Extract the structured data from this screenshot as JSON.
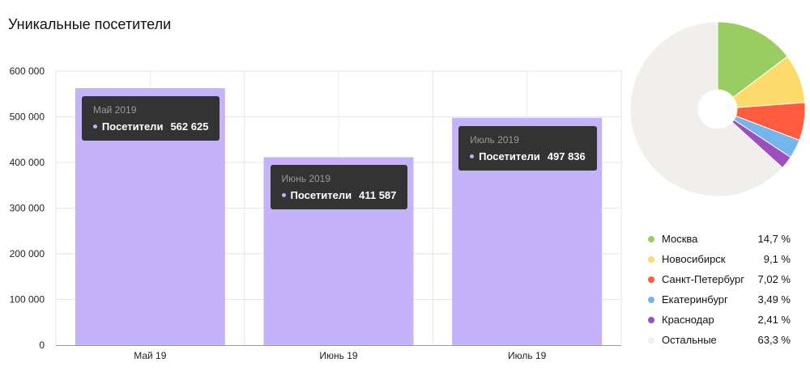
{
  "chart_data": [
    {
      "type": "bar",
      "title": "Уникальные посетители",
      "categories": [
        "Май 19",
        "Июнь 19",
        "Июль 19"
      ],
      "series": [
        {
          "name": "Посетители",
          "values": [
            562625,
            411587,
            497836
          ]
        }
      ],
      "ylim": [
        0,
        600000
      ],
      "yticks": [
        "0",
        "100 000",
        "200 000",
        "300 000",
        "400 000",
        "500 000",
        "600 000"
      ],
      "grid": true,
      "bar_color": "#c4b3fa",
      "tooltips": [
        {
          "date": "Май 2019",
          "label": "Посетители",
          "value": "562 625"
        },
        {
          "date": "Июнь 2019",
          "label": "Посетители",
          "value": "411 587"
        },
        {
          "date": "Июль 2019",
          "label": "Посетители",
          "value": "497 836"
        }
      ]
    },
    {
      "type": "pie",
      "labels": [
        "Москва",
        "Новосибирск",
        "Санкт-Петербург",
        "Екатеринбург",
        "Краснодар",
        "Остальные"
      ],
      "values": [
        14.7,
        9.1,
        7.02,
        3.49,
        2.41,
        63.3
      ],
      "value_labels": [
        "14,7 %",
        "9,1 %",
        "7,02 %",
        "3,49 %",
        "2,41 %",
        "63,3 %"
      ],
      "colors": [
        "#98cd62",
        "#fddb6a",
        "#ff5b3e",
        "#72b6ec",
        "#9d4fc0",
        "#f0efec"
      ],
      "legend_position": "bottom"
    }
  ]
}
